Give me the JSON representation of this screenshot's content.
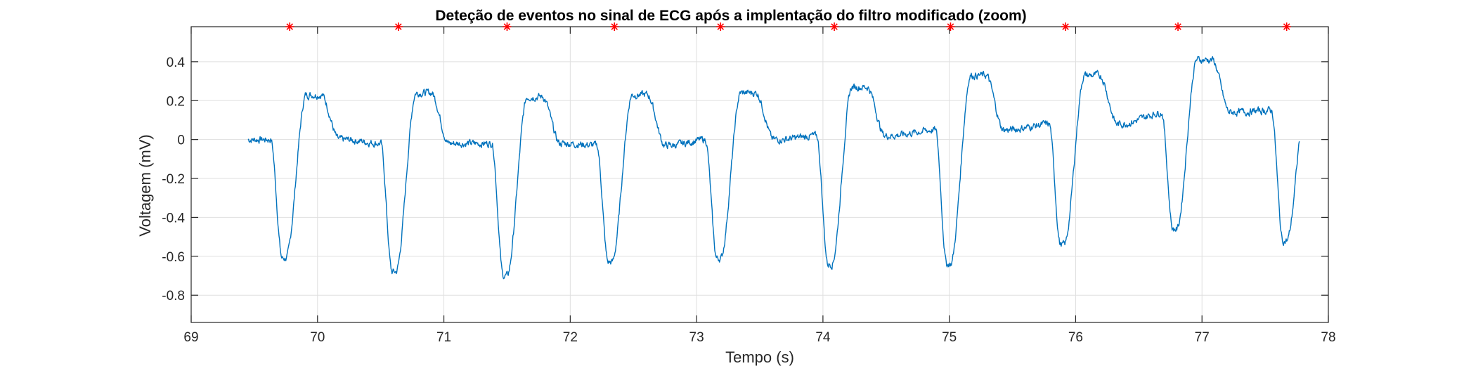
{
  "chart_data": {
    "type": "line",
    "title": "Deteção de eventos no sinal de ECG após a implentação do filtro modificado (zoom)",
    "xlabel": "Tempo (s)",
    "ylabel": "Voltagem (mV)",
    "xlim": [
      69,
      78
    ],
    "ylim": [
      -0.94,
      0.58
    ],
    "xticks": [
      69,
      70,
      71,
      72,
      73,
      74,
      75,
      76,
      77,
      78
    ],
    "xtick_labels": [
      "69",
      "70",
      "71",
      "72",
      "73",
      "74",
      "75",
      "76",
      "77",
      "78"
    ],
    "yticks": [
      0.4,
      0.2,
      0,
      -0.2,
      -0.4,
      -0.6,
      -0.8
    ],
    "ytick_labels": [
      "0.4",
      "0.2",
      "0",
      "-0.2",
      "-0.4",
      "-0.6",
      "-0.8"
    ],
    "grid": true,
    "colors": {
      "signal": "#0072BD",
      "events": "#FF0000"
    },
    "series": [
      {
        "type": "line",
        "x_start": 69.45,
        "x_end": 77.77,
        "baseline_levels": [
          0.0,
          -0.02,
          -0.02,
          -0.03,
          0.0,
          0.02,
          0.05,
          0.08,
          0.14,
          0.15
        ],
        "beat_times": [
          69.75,
          70.62,
          71.5,
          72.33,
          73.19,
          74.07,
          75.01,
          75.91,
          76.8,
          77.67
        ],
        "beat_minima": [
          -0.61,
          -0.68,
          -0.7,
          -0.63,
          -0.61,
          -0.64,
          -0.64,
          -0.54,
          -0.46,
          -0.52
        ],
        "wave_peaks": [
          0.23,
          0.24,
          0.22,
          0.23,
          0.24,
          0.27,
          0.33,
          0.33,
          0.41,
          0.24
        ]
      },
      {
        "type": "scatter",
        "marker": "asterisk",
        "x": [
          69.78,
          70.64,
          71.5,
          72.35,
          73.19,
          74.09,
          75.01,
          75.92,
          76.81,
          77.67
        ],
        "y": [
          0.58,
          0.58,
          0.58,
          0.58,
          0.58,
          0.58,
          0.58,
          0.58,
          0.58,
          0.58
        ]
      }
    ]
  }
}
